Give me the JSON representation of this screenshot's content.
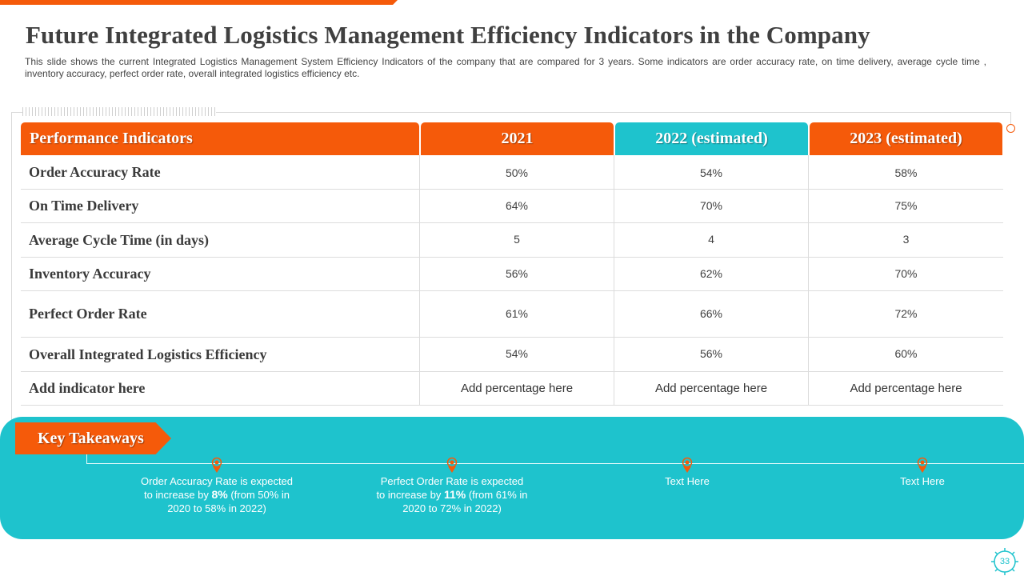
{
  "title": "Future Integrated Logistics Management Efficiency Indicators in the Company",
  "subtitle": "This slide shows the current Integrated Logistics Management System Efficiency Indicators of the company that are compared for 3 years. Some indicators are order accuracy rate, on time delivery, average cycle time , inventory accuracy, perfect order rate, overall integrated logistics efficiency etc.",
  "colors": {
    "orange": "#f55a0a",
    "teal": "#1ec3cd"
  },
  "table": {
    "headers": [
      "Performance Indicators",
      "2021",
      "2022 (estimated)",
      "2023 (estimated)"
    ],
    "rows": [
      {
        "indicator": "Order Accuracy Rate",
        "v2021": "50%",
        "v2022": "54%",
        "v2023": "58%"
      },
      {
        "indicator": "On Time Delivery",
        "v2021": "64%",
        "v2022": "70%",
        "v2023": "75%"
      },
      {
        "indicator": "Average Cycle Time (in days)",
        "v2021": "5",
        "v2022": "4",
        "v2023": "3"
      },
      {
        "indicator": "Inventory Accuracy",
        "v2021": "56%",
        "v2022": "62%",
        "v2023": "70%"
      },
      {
        "indicator": "Perfect Order Rate",
        "v2021": "61%",
        "v2022": "66%",
        "v2023": "72%"
      },
      {
        "indicator": "Overall Integrated Logistics Efficiency",
        "v2021": "54%",
        "v2022": "56%",
        "v2023": "60%"
      },
      {
        "indicator": "Add indicator here",
        "v2021": "Add percentage here",
        "v2022": "Add percentage here",
        "v2023": "Add percentage here"
      }
    ]
  },
  "takeaways": {
    "label": "Key Takeaways",
    "items": [
      {
        "pre": "Order Accuracy Rate is expected to increase by ",
        "bold": "8%",
        "post": " (from 50% in 2020 to 58% in 2022)"
      },
      {
        "pre": "Perfect Order Rate is expected to increase by ",
        "bold": "11%",
        "post": " (from 61% in 2020 to 72% in 2022)"
      },
      {
        "pre": "Text Here",
        "bold": "",
        "post": ""
      },
      {
        "pre": "Text Here",
        "bold": "",
        "post": ""
      }
    ]
  },
  "page_number": "33"
}
